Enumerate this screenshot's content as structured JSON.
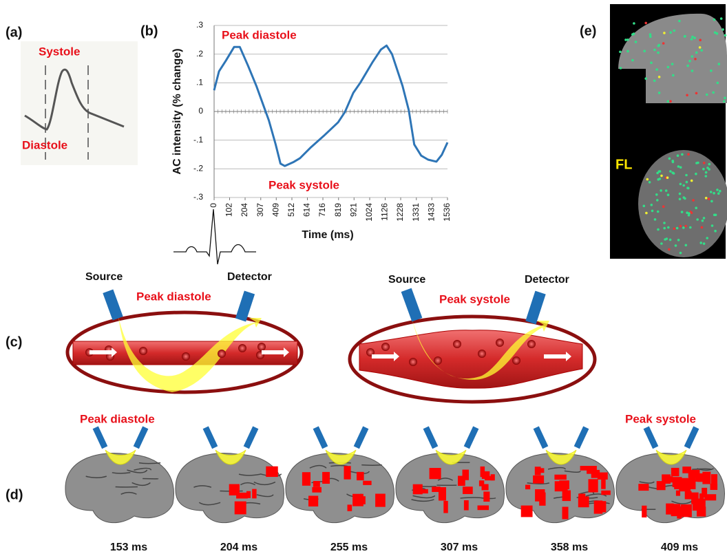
{
  "panel_labels": [
    "(a)",
    "(b)",
    "(c)",
    "(d)",
    "(e)"
  ],
  "panel_a": {
    "upper": "Systole",
    "lower": "Diastole"
  },
  "chart_data": {
    "type": "line",
    "y_label": "AC intensity (% change)",
    "x_label": "Time (ms)",
    "annotations": [
      "Peak diastole",
      "Peak systole"
    ],
    "x": [
      0,
      32,
      77,
      132,
      169,
      223,
      278,
      360,
      405,
      437,
      465,
      520,
      565,
      633,
      720,
      816,
      861,
      916,
      962,
      1044,
      1098,
      1135,
      1171,
      1240,
      1281,
      1317,
      1363,
      1408,
      1463,
      1499,
      1536
    ],
    "values": [
      0.074,
      0.14,
      0.177,
      0.225,
      0.225,
      0.16,
      0.089,
      -0.031,
      -0.115,
      -0.182,
      -0.19,
      -0.177,
      -0.163,
      -0.127,
      -0.086,
      -0.038,
      -0.002,
      0.065,
      0.1,
      0.173,
      0.216,
      0.23,
      0.2,
      0.089,
      0.005,
      -0.115,
      -0.154,
      -0.168,
      -0.175,
      -0.151,
      -0.108
    ],
    "color": "#2e75b6",
    "xlim": [
      0,
      1536
    ],
    "xticks": [
      0,
      102,
      204,
      307,
      409,
      512,
      614,
      716,
      819,
      921,
      1024,
      1126,
      1228,
      1331,
      1433,
      1536
    ],
    "ylim": [
      -0.3,
      0.3
    ],
    "yticks": [
      {
        "value": 0.3,
        "label": ".3"
      },
      {
        "value": 0.2,
        "label": ".2"
      },
      {
        "value": 0.1,
        "label": ".1"
      },
      {
        "value": 0,
        "label": "0"
      },
      {
        "value": -0.1,
        "label": "-.1"
      },
      {
        "value": -0.2,
        "label": "-.2"
      },
      {
        "value": -0.3,
        "label": "-.3"
      }
    ],
    "grid": true
  },
  "panel_c": {
    "left": {
      "source": "Source",
      "detector": "Detector",
      "state": "Peak diastole"
    },
    "right": {
      "source": "Source",
      "detector": "Detector",
      "state": "Peak systole"
    }
  },
  "panel_d": {
    "left_state": "Peak diastole",
    "right_state": "Peak systole",
    "times": [
      "153 ms",
      "204 ms",
      "255 ms",
      "307 ms",
      "358 ms",
      "409 ms"
    ]
  },
  "panel_e": {
    "label": "FL"
  }
}
